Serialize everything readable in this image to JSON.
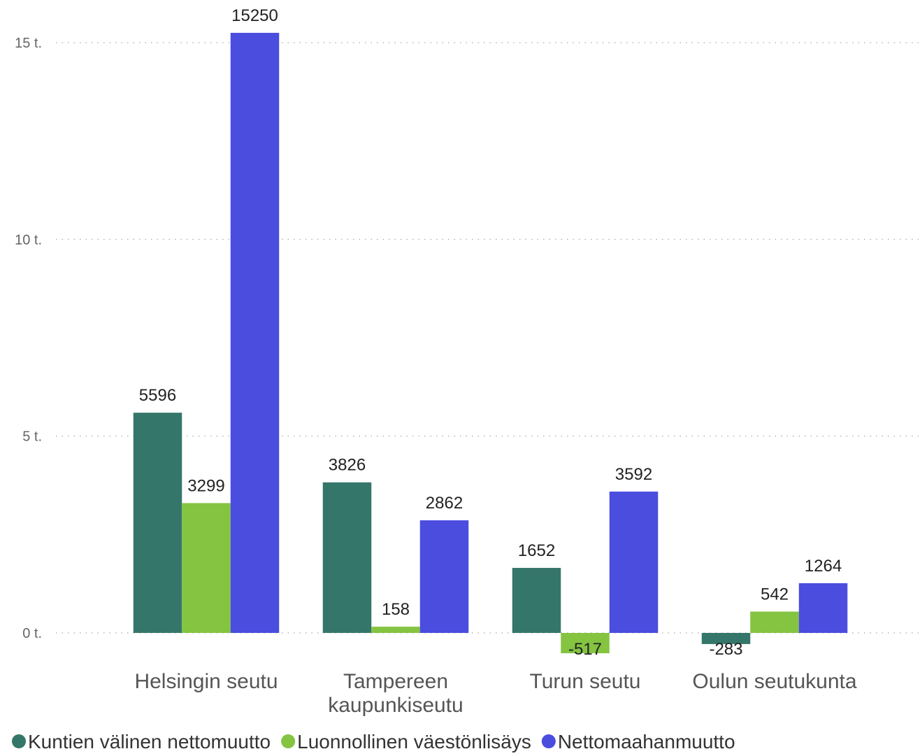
{
  "chart_data": {
    "type": "bar",
    "categories": [
      [
        "Helsingin seutu"
      ],
      [
        "Tampereen",
        "kaupunkiseutu"
      ],
      [
        "Turun seutu"
      ],
      [
        "Oulun seutukunta"
      ]
    ],
    "series": [
      {
        "name": "Kuntien välinen nettomuutto",
        "color": "#35766a",
        "values": [
          5596,
          3826,
          1652,
          -283
        ]
      },
      {
        "name": "Luonnollinen väestönlisäys",
        "color": "#84c441",
        "values": [
          3299,
          158,
          -517,
          542
        ]
      },
      {
        "name": "Nettomaahanmuutto",
        "color": "#4b4ddf",
        "values": [
          15250,
          2862,
          3592,
          1264
        ]
      }
    ],
    "yticks": [
      {
        "value": 0,
        "label": "0 t."
      },
      {
        "value": 5000,
        "label": "5 t."
      },
      {
        "value": 10000,
        "label": "10 t."
      },
      {
        "value": 15000,
        "label": "15 t."
      }
    ],
    "ylim": [
      -600,
      15700
    ],
    "grid": true,
    "legend": "bottom-left",
    "title": "",
    "xlabel": "",
    "ylabel": ""
  }
}
